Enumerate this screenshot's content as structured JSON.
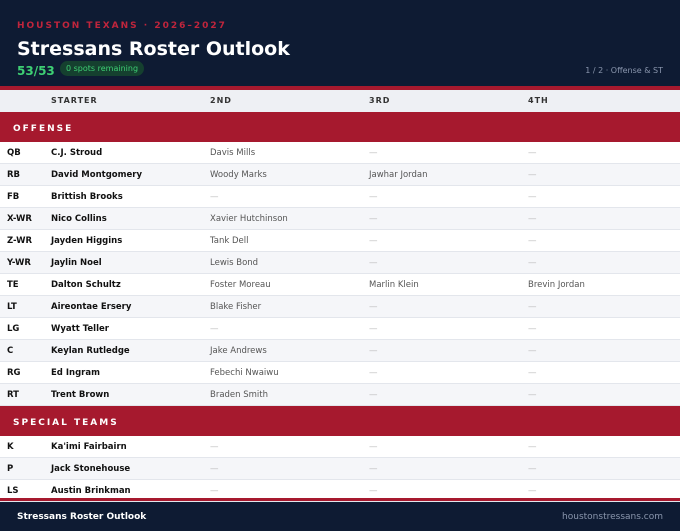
{
  "header": {
    "eyebrow": "HOUSTON TEXANS · 2026–2027",
    "title": "Stressans Roster Outlook",
    "count": "53/53",
    "badge": "0 spots remaining",
    "page": "1 / 2 · Offense & ST"
  },
  "table": {
    "columns": [
      "STARTER",
      "2ND",
      "3RD",
      "4TH"
    ],
    "sections": [
      {
        "name": "OFFENSE",
        "rows": [
          [
            "QB",
            "C.J. Stroud",
            "Davis Mills",
            "—",
            "—"
          ],
          [
            "RB",
            "David Montgomery",
            "Woody Marks",
            "Jawhar Jordan",
            "—"
          ],
          [
            "FB",
            "Brittish Brooks",
            "—",
            "—",
            "—"
          ],
          [
            "X-WR",
            "Nico Collins",
            "Xavier Hutchinson",
            "—",
            "—"
          ],
          [
            "Z-WR",
            "Jayden Higgins",
            "Tank Dell",
            "—",
            "—"
          ],
          [
            "Y-WR",
            "Jaylin Noel",
            "Lewis Bond",
            "—",
            "—"
          ],
          [
            "TE",
            "Dalton Schultz",
            "Foster Moreau",
            "Marlin Klein",
            "Brevin Jordan"
          ],
          [
            "LT",
            "Aireontae Ersery",
            "Blake Fisher",
            "—",
            "—"
          ],
          [
            "LG",
            "Wyatt Teller",
            "—",
            "—",
            "—"
          ],
          [
            "C",
            "Keylan Rutledge",
            "Jake Andrews",
            "—",
            "—"
          ],
          [
            "RG",
            "Ed Ingram",
            "Febechi Nwaiwu",
            "—",
            "—"
          ],
          [
            "RT",
            "Trent Brown",
            "Braden Smith",
            "—",
            "—"
          ]
        ]
      },
      {
        "name": "SPECIAL TEAMS",
        "rows": [
          [
            "K",
            "Ka'imi Fairbairn",
            "—",
            "—",
            "—"
          ],
          [
            "P",
            "Jack Stonehouse",
            "—",
            "—",
            "—"
          ],
          [
            "LS",
            "Austin Brinkman",
            "—",
            "—",
            "—"
          ]
        ]
      }
    ]
  },
  "footer": {
    "left": "Stressans Roster Outlook",
    "right": "houstonstressans.com"
  }
}
